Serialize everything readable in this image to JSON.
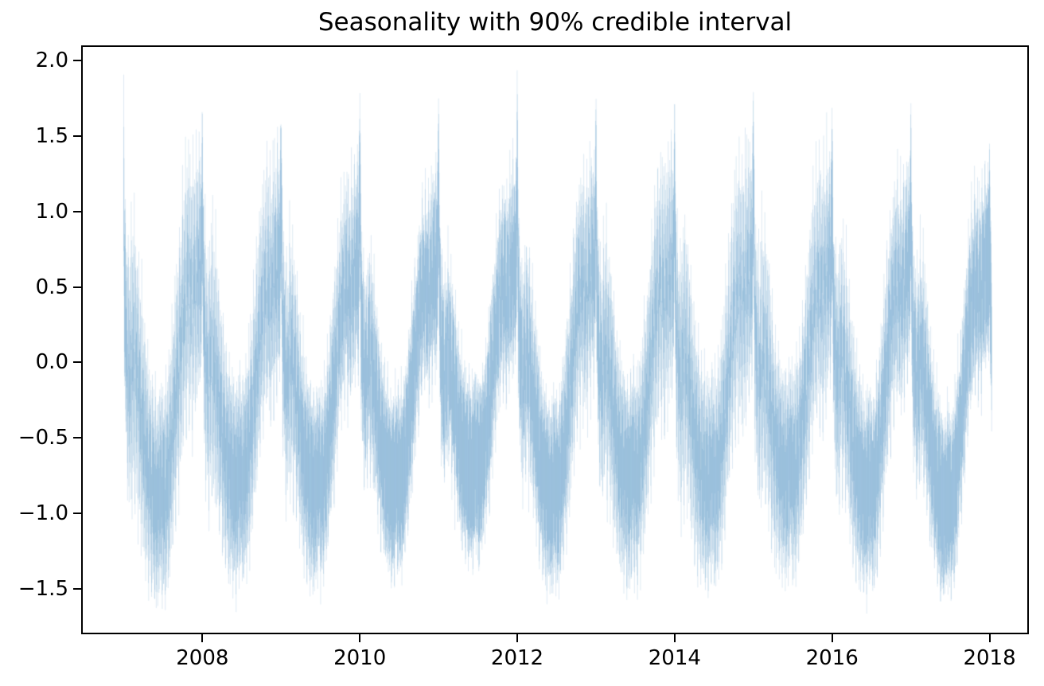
{
  "figure": {
    "background_hex": "#ffffff",
    "axis_color_hex": "#000000"
  },
  "chart_data": {
    "type": "area",
    "title": "Seasonality with 90% credible interval",
    "xlabel": "",
    "ylabel": "",
    "grid": false,
    "legend": null,
    "band_label": "90% credible interval",
    "band_color_hex": "#1f77b4",
    "band_stroke_alpha": 0.18,
    "x_axis": {
      "tick_labels": [
        "2008",
        "2010",
        "2012",
        "2014",
        "2016",
        "2018"
      ],
      "tick_values": [
        2008,
        2010,
        2012,
        2014,
        2016,
        2018
      ],
      "lim": [
        2006.46,
        2018.5
      ]
    },
    "y_axis": {
      "tick_labels": [
        "2.0",
        "1.5",
        "1.0",
        "0.5",
        "0.0",
        "−0.5",
        "−1.0",
        "−1.5"
      ],
      "tick_values": [
        2.0,
        1.5,
        1.0,
        0.5,
        0.0,
        -0.5,
        -1.0,
        -1.5
      ],
      "lim": [
        -1.8,
        2.1
      ]
    },
    "series_start": 2007.0,
    "series_end": 2018.03,
    "sampling": "daily",
    "seasonal_profile": {
      "comment": "Yearly envelope of the daily 90% credible band: band = mid ± half, with weekly oscillation amplitude wob; t is fraction of year",
      "t": [
        0.0,
        0.03,
        0.07,
        0.12,
        0.17,
        0.22,
        0.27,
        0.32,
        0.38,
        0.43,
        0.47,
        0.52,
        0.57,
        0.62,
        0.67,
        0.72,
        0.77,
        0.82,
        0.87,
        0.92,
        0.96,
        1.0
      ],
      "mid": [
        0.55,
        0.15,
        -0.1,
        0.1,
        -0.05,
        -0.3,
        -0.55,
        -0.72,
        -0.85,
        -0.92,
        -0.8,
        -0.88,
        -0.7,
        -0.45,
        -0.15,
        0.15,
        0.42,
        0.55,
        0.48,
        0.6,
        0.68,
        0.55
      ],
      "half": [
        0.5,
        0.47,
        0.45,
        0.45,
        0.45,
        0.45,
        0.45,
        0.45,
        0.46,
        0.46,
        0.45,
        0.45,
        0.44,
        0.43,
        0.42,
        0.42,
        0.42,
        0.42,
        0.42,
        0.43,
        0.46,
        0.5
      ],
      "wob": [
        0.2,
        0.35,
        0.42,
        0.5,
        0.42,
        0.38,
        0.32,
        0.28,
        0.25,
        0.22,
        0.25,
        0.25,
        0.28,
        0.32,
        0.36,
        0.4,
        0.45,
        0.47,
        0.47,
        0.45,
        0.38,
        0.2
      ]
    },
    "weekly_pattern": [
      0.85,
      0.35,
      -0.2,
      -0.8,
      -1.0,
      -0.5,
      0.3
    ],
    "new_year_spike": {
      "years": [
        2007,
        2008,
        2009,
        2010,
        2011,
        2012,
        2013,
        2014,
        2015,
        2016,
        2017,
        2018
      ],
      "upper_tip": [
        1.77,
        1.7,
        1.75,
        1.82,
        1.85,
        1.92,
        1.85,
        1.75,
        1.9,
        1.72,
        1.8,
        1.42
      ]
    },
    "summer_minimum": {
      "years": [
        2007,
        2008,
        2009,
        2010,
        2011,
        2012,
        2013,
        2014,
        2015,
        2016,
        2017
      ],
      "lower_tip": [
        -1.52,
        -1.4,
        -1.45,
        -1.42,
        -1.32,
        -1.5,
        -1.38,
        -1.4,
        -1.35,
        -1.48,
        -1.58
      ]
    }
  }
}
